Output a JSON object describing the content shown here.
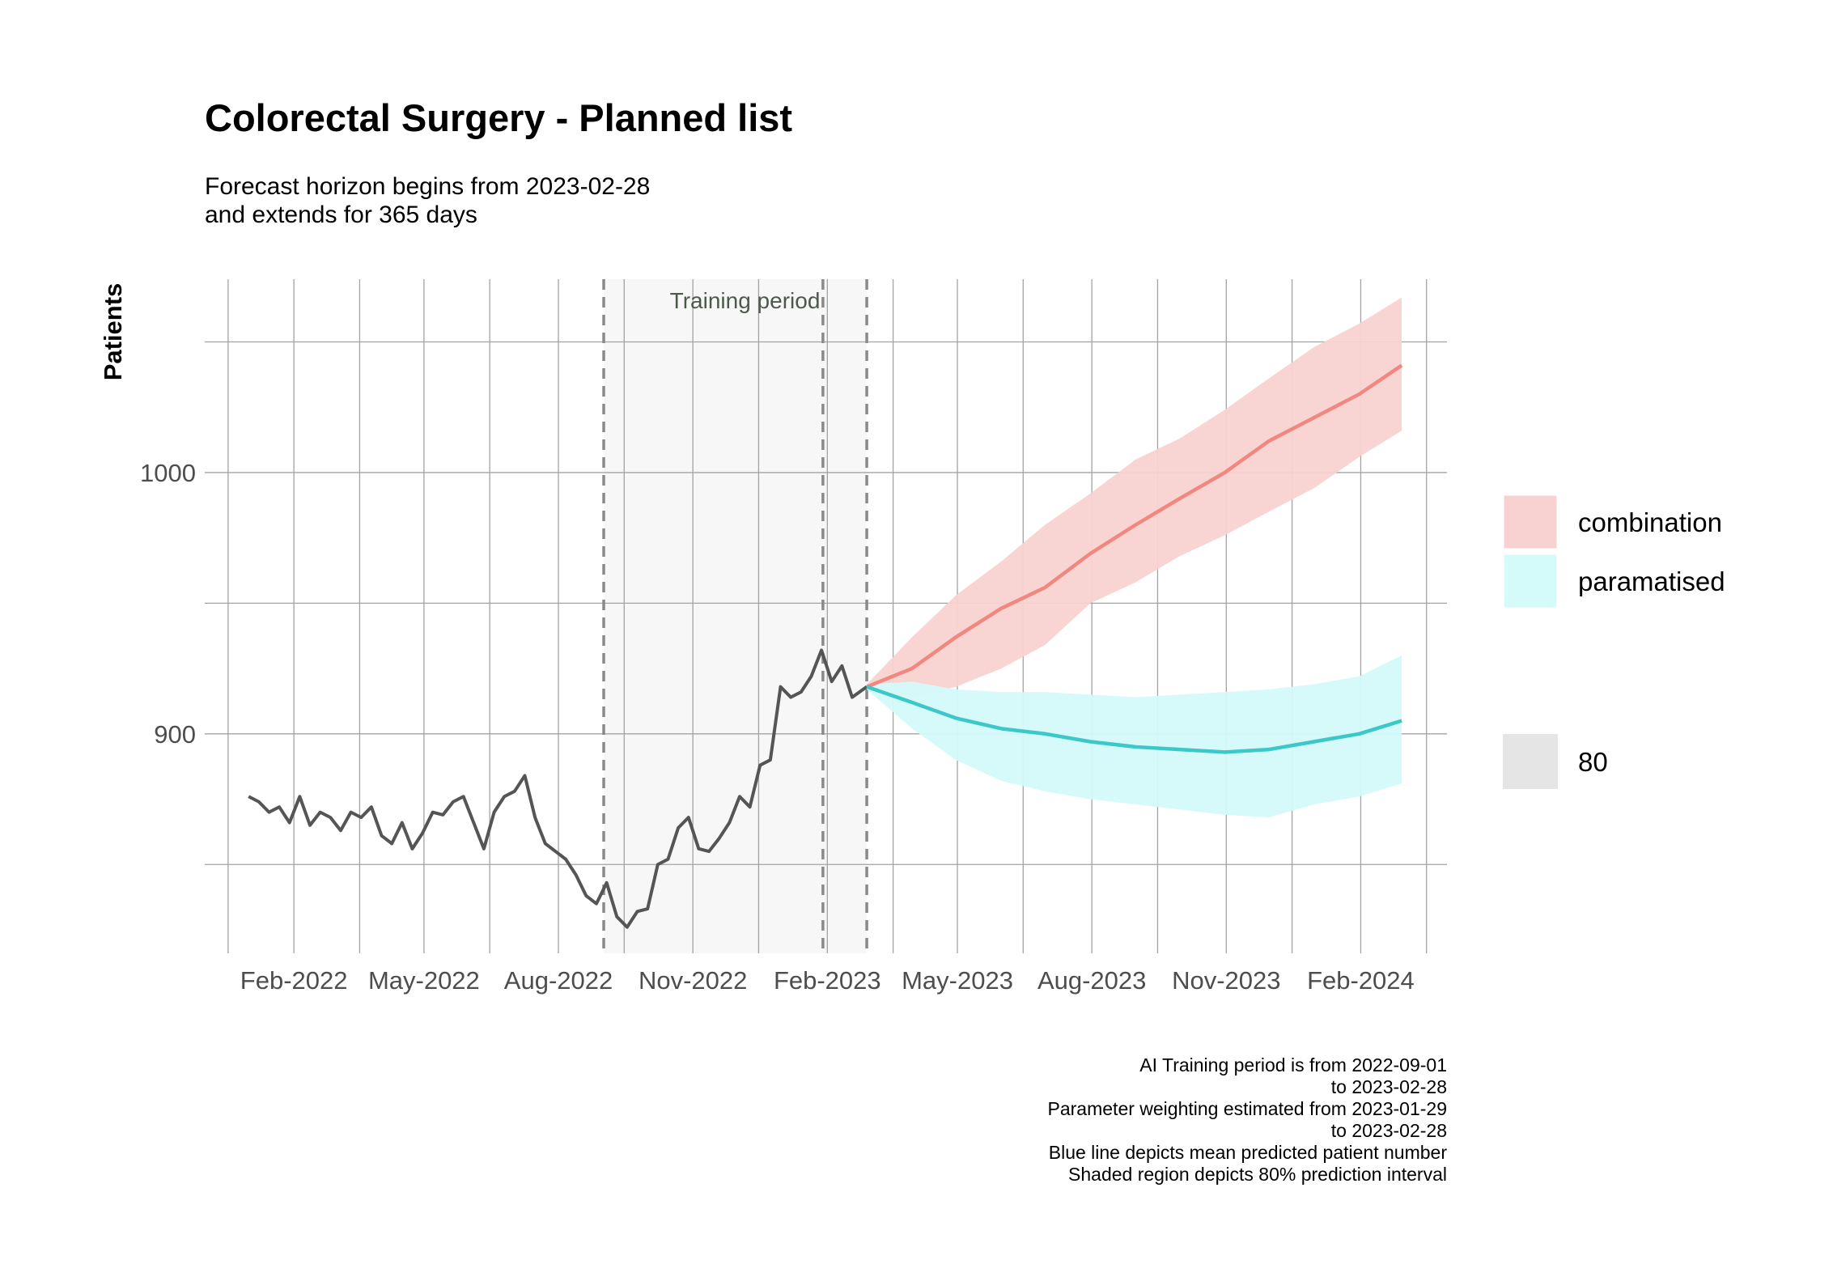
{
  "chart_data": {
    "type": "line",
    "title": "Colorectal Surgery - Planned list",
    "subtitle": [
      "Forecast horizon begins from 2023-02-28",
      "and extends for 365 days"
    ],
    "ylabel": "Patients",
    "xlabel": "",
    "x_ticks": [
      "Feb-2022",
      "May-2022",
      "Aug-2022",
      "Nov-2022",
      "Feb-2023",
      "May-2023",
      "Aug-2023",
      "Nov-2023",
      "Feb-2024"
    ],
    "x_tick_dates": [
      "2022-02-01",
      "2022-05-01",
      "2022-08-01",
      "2022-11-01",
      "2023-02-01",
      "2023-05-01",
      "2023-08-01",
      "2023-11-01",
      "2024-02-01"
    ],
    "y_ticks": [
      900,
      1000
    ],
    "ylim": [
      816,
      1074
    ],
    "xlim": [
      "2021-12-02",
      "2024-03-31"
    ],
    "grid": true,
    "training_period": {
      "start": "2022-09-01",
      "end": "2023-02-28",
      "label": "Training period"
    },
    "weighting_start": "2023-01-29",
    "historical": {
      "name": "observed",
      "color": "#555555",
      "points": [
        [
          "2022-01-01",
          876
        ],
        [
          "2022-01-08",
          874
        ],
        [
          "2022-01-15",
          870
        ],
        [
          "2022-01-22",
          872
        ],
        [
          "2022-01-29",
          866
        ],
        [
          "2022-02-05",
          876
        ],
        [
          "2022-02-12",
          865
        ],
        [
          "2022-02-19",
          870
        ],
        [
          "2022-02-26",
          868
        ],
        [
          "2022-03-05",
          863
        ],
        [
          "2022-03-12",
          870
        ],
        [
          "2022-03-19",
          868
        ],
        [
          "2022-03-26",
          872
        ],
        [
          "2022-04-02",
          861
        ],
        [
          "2022-04-09",
          858
        ],
        [
          "2022-04-16",
          866
        ],
        [
          "2022-04-23",
          856
        ],
        [
          "2022-04-30",
          862
        ],
        [
          "2022-05-07",
          870
        ],
        [
          "2022-05-14",
          869
        ],
        [
          "2022-05-21",
          874
        ],
        [
          "2022-05-28",
          876
        ],
        [
          "2022-06-04",
          866
        ],
        [
          "2022-06-11",
          856
        ],
        [
          "2022-06-18",
          870
        ],
        [
          "2022-06-25",
          876
        ],
        [
          "2022-07-02",
          878
        ],
        [
          "2022-07-09",
          884
        ],
        [
          "2022-07-16",
          868
        ],
        [
          "2022-07-23",
          858
        ],
        [
          "2022-07-30",
          855
        ],
        [
          "2022-08-06",
          852
        ],
        [
          "2022-08-13",
          846
        ],
        [
          "2022-08-20",
          838
        ],
        [
          "2022-08-27",
          835
        ],
        [
          "2022-09-03",
          843
        ],
        [
          "2022-09-10",
          830
        ],
        [
          "2022-09-17",
          826
        ],
        [
          "2022-09-24",
          832
        ],
        [
          "2022-10-01",
          833
        ],
        [
          "2022-10-08",
          850
        ],
        [
          "2022-10-15",
          852
        ],
        [
          "2022-10-22",
          864
        ],
        [
          "2022-10-29",
          868
        ],
        [
          "2022-11-05",
          856
        ],
        [
          "2022-11-12",
          855
        ],
        [
          "2022-11-19",
          860
        ],
        [
          "2022-11-26",
          866
        ],
        [
          "2022-12-03",
          876
        ],
        [
          "2022-12-10",
          872
        ],
        [
          "2022-12-17",
          888
        ],
        [
          "2022-12-24",
          890
        ],
        [
          "2022-12-31",
          918
        ],
        [
          "2023-01-07",
          914
        ],
        [
          "2023-01-14",
          916
        ],
        [
          "2023-01-21",
          922
        ],
        [
          "2023-01-28",
          932
        ],
        [
          "2023-02-04",
          920
        ],
        [
          "2023-02-11",
          926
        ],
        [
          "2023-02-18",
          914
        ],
        [
          "2023-02-28",
          918
        ]
      ]
    },
    "series": [
      {
        "name": "combination",
        "color": "#f08880",
        "fill": "#f8d2d0",
        "mean": [
          [
            "2023-02-28",
            918
          ],
          [
            "2023-03-31",
            925
          ],
          [
            "2023-04-30",
            937
          ],
          [
            "2023-05-31",
            948
          ],
          [
            "2023-06-30",
            956
          ],
          [
            "2023-07-31",
            969
          ],
          [
            "2023-08-31",
            980
          ],
          [
            "2023-09-30",
            990
          ],
          [
            "2023-10-31",
            1000
          ],
          [
            "2023-11-30",
            1012
          ],
          [
            "2023-12-31",
            1021
          ],
          [
            "2024-01-31",
            1030
          ],
          [
            "2024-02-29",
            1041
          ]
        ],
        "lower": [
          [
            "2023-02-28",
            917
          ],
          [
            "2023-03-31",
            914
          ],
          [
            "2023-04-30",
            918
          ],
          [
            "2023-05-31",
            925
          ],
          [
            "2023-06-30",
            934
          ],
          [
            "2023-07-31",
            950
          ],
          [
            "2023-08-31",
            958
          ],
          [
            "2023-09-30",
            968
          ],
          [
            "2023-10-31",
            976
          ],
          [
            "2023-11-30",
            985
          ],
          [
            "2023-12-31",
            994
          ],
          [
            "2024-01-31",
            1006
          ],
          [
            "2024-02-29",
            1016
          ]
        ],
        "upper": [
          [
            "2023-02-28",
            919
          ],
          [
            "2023-03-31",
            937
          ],
          [
            "2023-04-30",
            953
          ],
          [
            "2023-05-31",
            966
          ],
          [
            "2023-06-30",
            980
          ],
          [
            "2023-07-31",
            992
          ],
          [
            "2023-08-31",
            1005
          ],
          [
            "2023-09-30",
            1013
          ],
          [
            "2023-10-31",
            1024
          ],
          [
            "2023-11-30",
            1036
          ],
          [
            "2023-12-31",
            1048
          ],
          [
            "2024-01-31",
            1057
          ],
          [
            "2024-02-29",
            1067
          ]
        ]
      },
      {
        "name": "paramatised",
        "color": "#3cc8c8",
        "fill": "#d4fafa",
        "mean": [
          [
            "2023-02-28",
            918
          ],
          [
            "2023-03-31",
            912
          ],
          [
            "2023-04-30",
            906
          ],
          [
            "2023-05-31",
            902
          ],
          [
            "2023-06-30",
            900
          ],
          [
            "2023-07-31",
            897
          ],
          [
            "2023-08-31",
            895
          ],
          [
            "2023-09-30",
            894
          ],
          [
            "2023-10-31",
            893
          ],
          [
            "2023-11-30",
            894
          ],
          [
            "2023-12-31",
            897
          ],
          [
            "2024-01-31",
            900
          ],
          [
            "2024-02-29",
            905
          ]
        ],
        "lower": [
          [
            "2023-02-28",
            917
          ],
          [
            "2023-03-31",
            902
          ],
          [
            "2023-04-30",
            890
          ],
          [
            "2023-05-31",
            882
          ],
          [
            "2023-06-30",
            878
          ],
          [
            "2023-07-31",
            875
          ],
          [
            "2023-08-31",
            873
          ],
          [
            "2023-09-30",
            871
          ],
          [
            "2023-10-31",
            869
          ],
          [
            "2023-11-30",
            868
          ],
          [
            "2023-12-31",
            873
          ],
          [
            "2024-01-31",
            876
          ],
          [
            "2024-02-29",
            881
          ]
        ],
        "upper": [
          [
            "2023-02-28",
            919
          ],
          [
            "2023-03-31",
            920
          ],
          [
            "2023-04-30",
            917
          ],
          [
            "2023-05-31",
            916
          ],
          [
            "2023-06-30",
            916
          ],
          [
            "2023-07-31",
            915
          ],
          [
            "2023-08-31",
            914
          ],
          [
            "2023-09-30",
            915
          ],
          [
            "2023-10-31",
            916
          ],
          [
            "2023-11-30",
            917
          ],
          [
            "2023-12-31",
            919
          ],
          [
            "2024-01-31",
            922
          ],
          [
            "2024-02-29",
            930
          ]
        ]
      }
    ],
    "legend": {
      "position": "right",
      "items": [
        {
          "label": "combination",
          "fill": "#f8d2d0"
        },
        {
          "label": "paramatised",
          "fill": "#d4fafa"
        }
      ],
      "level": {
        "label": "80",
        "fill": "#e5e5e5"
      }
    },
    "caption": [
      "AI Training period is from 2022-09-01",
      "to 2023-02-28",
      "Parameter weighting estimated from 2023-01-29",
      "to 2023-02-28",
      "Blue line depicts mean predicted patient number",
      "Shaded region depicts 80% prediction interval"
    ]
  }
}
